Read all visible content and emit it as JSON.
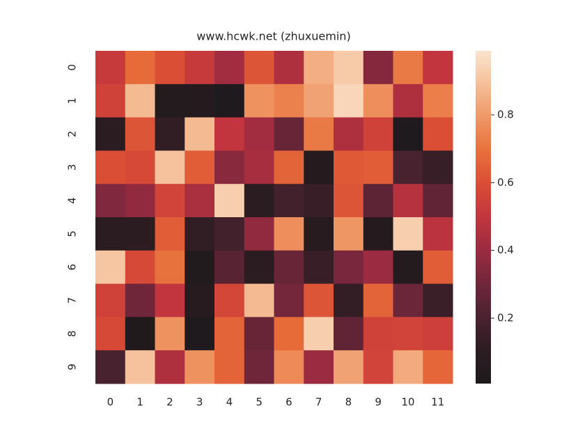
{
  "chart_data": {
    "type": "heatmap",
    "title": "www.hcwk.net (zhuxuemin)",
    "x": [
      0,
      1,
      2,
      3,
      4,
      5,
      6,
      7,
      8,
      9,
      10,
      11
    ],
    "y": [
      0,
      1,
      2,
      3,
      4,
      5,
      6,
      7,
      8,
      9
    ],
    "values": [
      [
        0.52,
        0.68,
        0.6,
        0.52,
        0.42,
        0.62,
        0.45,
        0.85,
        0.92,
        0.35,
        0.72,
        0.5
      ],
      [
        0.55,
        0.88,
        0.05,
        0.06,
        0.02,
        0.78,
        0.74,
        0.82,
        0.95,
        0.77,
        0.45,
        0.73
      ],
      [
        0.1,
        0.62,
        0.12,
        0.88,
        0.5,
        0.42,
        0.28,
        0.72,
        0.45,
        0.55,
        0.02,
        0.6
      ],
      [
        0.6,
        0.58,
        0.9,
        0.64,
        0.36,
        0.43,
        0.66,
        0.06,
        0.63,
        0.64,
        0.2,
        0.14
      ],
      [
        0.34,
        0.38,
        0.56,
        0.44,
        0.93,
        0.1,
        0.18,
        0.14,
        0.62,
        0.25,
        0.47,
        0.26
      ],
      [
        0.1,
        0.1,
        0.64,
        0.12,
        0.18,
        0.38,
        0.77,
        0.08,
        0.79,
        0.06,
        0.93,
        0.48
      ],
      [
        0.91,
        0.58,
        0.7,
        0.04,
        0.24,
        0.1,
        0.28,
        0.14,
        0.32,
        0.4,
        0.05,
        0.64
      ],
      [
        0.55,
        0.3,
        0.5,
        0.08,
        0.57,
        0.88,
        0.31,
        0.62,
        0.13,
        0.66,
        0.29,
        0.15
      ],
      [
        0.58,
        0.03,
        0.78,
        0.02,
        0.66,
        0.28,
        0.68,
        0.93,
        0.26,
        0.55,
        0.56,
        0.54
      ],
      [
        0.2,
        0.9,
        0.45,
        0.78,
        0.66,
        0.3,
        0.76,
        0.4,
        0.82,
        0.56,
        0.84,
        0.67
      ]
    ],
    "zlim": [
      0.007,
      0.989
    ],
    "zticks": [
      0.2,
      0.4,
      0.6,
      0.8
    ],
    "colormap": [
      "#1d1a1c",
      "#2c1c22",
      "#4a222f",
      "#70263b",
      "#9a2b40",
      "#c1353e",
      "#da4d36",
      "#e8703a",
      "#ef9766",
      "#f5bf98",
      "#fbe4ce"
    ]
  }
}
